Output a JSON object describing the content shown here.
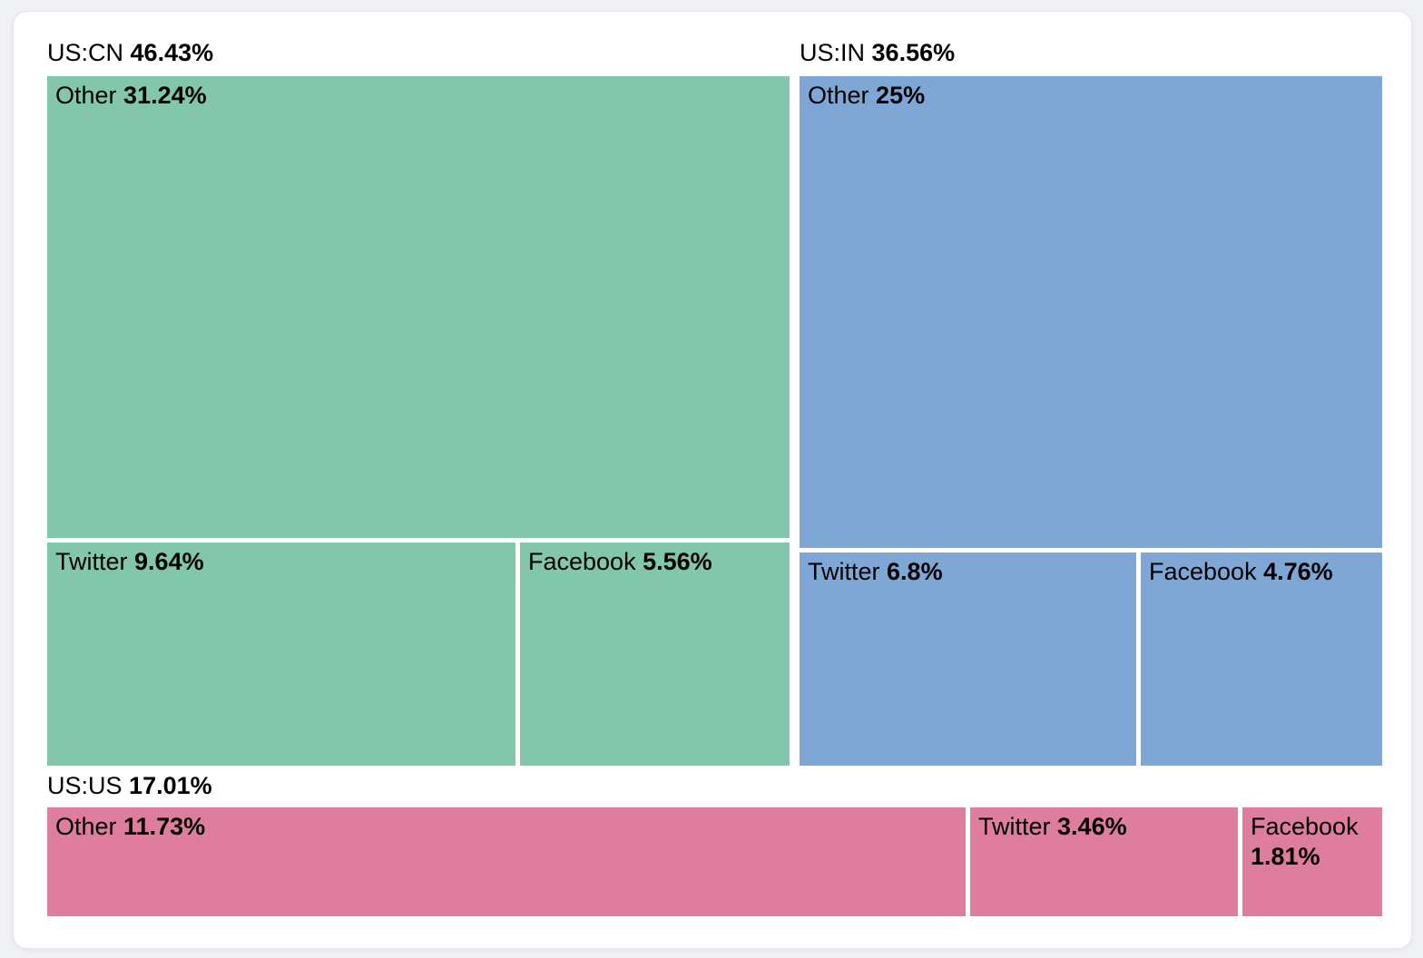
{
  "chart_data": {
    "type": "treemap",
    "title": "",
    "legend": "none",
    "unit": "%",
    "groups": [
      {
        "name": "US:CN",
        "value": 46.43,
        "value_text": "46.43%",
        "color": "#82c7ac",
        "cells": [
          {
            "label": "Other",
            "value": 31.24,
            "value_text": "31.24%"
          },
          {
            "label": "Twitter",
            "value": 9.64,
            "value_text": "9.64%"
          },
          {
            "label": "Facebook",
            "value": 5.56,
            "value_text": "5.56%"
          }
        ]
      },
      {
        "name": "US:IN",
        "value": 36.56,
        "value_text": "36.56%",
        "color": "#7fa7d5",
        "cells": [
          {
            "label": "Other",
            "value": 25,
            "value_text": "25%"
          },
          {
            "label": "Twitter",
            "value": 6.8,
            "value_text": "6.8%"
          },
          {
            "label": "Facebook",
            "value": 4.76,
            "value_text": "4.76%"
          }
        ]
      },
      {
        "name": "US:US",
        "value": 17.01,
        "value_text": "17.01%",
        "color": "#de7d9d",
        "cells": [
          {
            "label": "Other",
            "value": 11.73,
            "value_text": "11.73%"
          },
          {
            "label": "Twitter",
            "value": 3.46,
            "value_text": "3.46%"
          },
          {
            "label": "Facebook",
            "value": 1.81,
            "value_text": "1.81%"
          }
        ]
      }
    ],
    "colors": {
      "us_cn": "#82c7ac",
      "us_in": "#7fa7d5",
      "us_us": "#de7d9d",
      "background": "#f0f1f4",
      "card": "#ffffff",
      "text": "#000000"
    }
  }
}
